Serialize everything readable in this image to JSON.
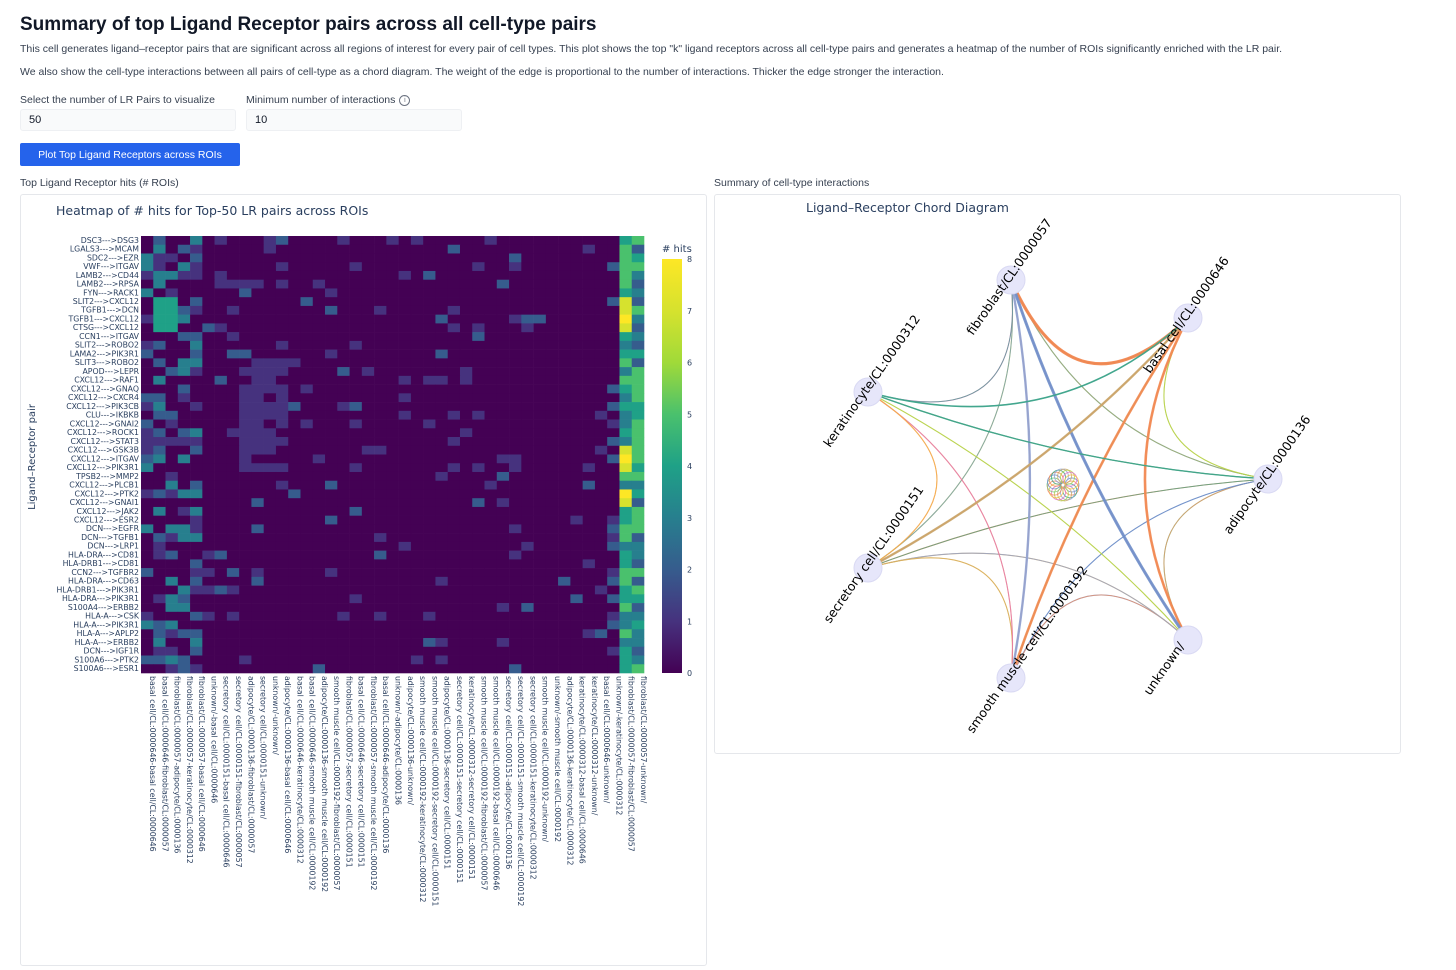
{
  "page": {
    "title": "Summary of top Ligand Receptor pairs across all cell-type pairs",
    "desc1": "This cell generates ligand–receptor pairs that are significant across all regions of interest for every pair of cell types. This plot shows the top \"k\" ligand receptors across all cell-type pairs and generates a heatmap of the number of ROIs significantly enriched with the LR pair.",
    "desc2": "We also show the cell-type interactions between all pairs of cell-type as a chord diagram. The weight of the edge is proportional to the number of interactions. Thicker the edge stronger the interaction."
  },
  "controls": {
    "lr_pairs_label": "Select the number of LR Pairs to visualize",
    "lr_pairs_value": "50",
    "min_interactions_label": "Minimum number of interactions",
    "min_interactions_value": "10",
    "plot_button": "Plot Top Ligand Receptors across ROIs"
  },
  "heatmap_panel": {
    "label": "Top Ligand Receptor hits (# ROIs)"
  },
  "chord_panel": {
    "label": "Summary of cell-type interactions"
  },
  "colors": {
    "accent": "#2563eb",
    "viridis_low": "#440154",
    "viridis_high": "#fde725"
  },
  "chart_data": [
    {
      "type": "heatmap",
      "title": "Heatmap of # hits for Top-50 LR pairs across ROIs",
      "ylabel": "Ligand–Receptor pair",
      "colorbar_title": "# hits",
      "zlim": [
        0,
        8
      ],
      "colorbar_ticks": [
        0,
        1,
        2,
        3,
        4,
        5,
        6,
        7,
        8
      ],
      "rows": [
        "DSC3--->DSG3",
        "LGALS3--->MCAM",
        "SDC2--->EZR",
        "VWF--->ITGAV",
        "LAMB2--->CD44",
        "LAMB2--->RPSA",
        "FYN--->RACK1",
        "SLIT2--->CXCL12",
        "TGFB1--->DCN",
        "TGFB1--->CXCL12",
        "CTSG--->CXCL12",
        "CCN1--->ITGAV",
        "SLIT2--->ROBO2",
        "LAMA2--->PIK3R1",
        "SLIT3--->ROBO2",
        "APOD--->LEPR",
        "CXCL12--->RAF1",
        "CXCL12--->GNAQ",
        "CXCL12--->CXCR4",
        "CXCL12--->PIK3CB",
        "CLU--->IKBKB",
        "CXCL12--->GNAI2",
        "CXCL12--->ROCK1",
        "CXCL12--->STAT3",
        "CXCL12--->GSK3B",
        "CXCL12--->ITGAV",
        "CXCL12--->PIK3R1",
        "TPSB2--->MMP2",
        "CXCL12--->PLCB1",
        "CXCL12--->PTK2",
        "CXCL12--->GNAI1",
        "CXCL12--->JAK2",
        "CXCL12--->ESR2",
        "DCN--->EGFR",
        "DCN--->TGFB1",
        "DCN--->LRP1",
        "HLA-DRA--->CD81",
        "HLA-DRB1--->CD81",
        "CCN2--->TGFBR2",
        "HLA-DRA--->CD63",
        "HLA-DRB1--->PIK3R1",
        "HLA-DRA--->PIK3R1",
        "S100A4--->ERBB2",
        "HLA-A--->CSK",
        "HLA-A--->PIK3R1",
        "HLA-A--->APLP2",
        "HLA-A--->ERBB2",
        "DCN--->IGF1R",
        "S100A6--->PTK2",
        "S100A6--->ESR1"
      ],
      "columns": [
        "basal cell/CL:0000646-basal cell/CL:0000646",
        "basal cell/CL:0000646-fibroblast/CL:0000057",
        "fibroblast/CL:0000057-adipocyte/CL:0000136",
        "fibroblast/CL:0000057-keratinocyte/CL:0000312",
        "fibroblast/CL:0000057-basal cell/CL:0000646",
        "unknown/-basal cell/CL:0000646",
        "secretory cell/CL:0000151-basal cell/CL:0000646",
        "secretory cell/CL:0000151-fibroblast/CL:0000057",
        "adipocyte/CL:0000136-fibroblast/CL:0000057",
        "secretory cell/CL:0000151-unknown/",
        "unknown/-unknown/",
        "adipocyte/CL:0000136-basal cell/CL:0000646",
        "basal cell/CL:0000646-keratinocyte/CL:0000312",
        "basal cell/CL:0000646-smooth muscle cell/CL:0000192",
        "adipocyte/CL:0000136-smooth muscle cell/CL:0000192",
        "smooth muscle cell/CL:0000192-fibroblast/CL:0000057",
        "fibroblast/CL:0000057-secretory cell/CL:0000151",
        "basal cell/CL:0000646-secretory cell/CL:0000151",
        "fibroblast/CL:0000057-smooth muscle cell/CL:0000192",
        "basal cell/CL:0000646-adipocyte/CL:0000136",
        "unknown/-adipocyte/CL:0000136",
        "adipocyte/CL:0000136-unknown/",
        "smooth muscle cell/CL:0000192-keratinocyte/CL:0000312",
        "smooth muscle cell/CL:0000192-secretory cell/CL:0000151",
        "adipocyte/CL:0000136-secretory cell/CL:0000151",
        "secretory cell/CL:0000151-secretory cell/CL:0000151",
        "keratinocyte/CL:0000312-secretory cell/CL:0000151",
        "smooth muscle cell/CL:0000192-fibroblast/CL:0000057",
        "smooth muscle cell/CL:0000192-basal cell/CL:0000646",
        "secretory cell/CL:0000151-adipocyte/CL:0000136",
        "secretory cell/CL:0000151-smooth muscle cell/CL:0000192",
        "secretory cell/CL:0000151-keratinocyte/CL:0000312",
        "smooth muscle cell/CL:0000192-unknown/",
        "unknown/-smooth muscle cell/CL:0000192",
        "adipocyte/CL:0000136-keratinocyte/CL:0000312",
        "keratinocyte/CL:0000312-basal cell/CL:0000646",
        "keratinocyte/CL:0000312-unknown/",
        "basal cell/CL:0000646-unknown/",
        "unknown/-keratinocyte/CL:0000312",
        "fibroblast/CL:0000057-fibroblast/CL:0000057",
        "fibroblast/CL:0000057-unknown/"
      ]
    },
    {
      "type": "chord",
      "title": "Ligand–Receptor Chord Diagram",
      "nodes": [
        "fibroblast/CL:0000057",
        "basal cell/CL:0000646",
        "adipocyte/CL:0000136",
        "unknown/",
        "smooth muscle cell/CL:0000192",
        "secretory cell/CL:0000151",
        "keratinocyte/CL:0000312"
      ]
    }
  ]
}
